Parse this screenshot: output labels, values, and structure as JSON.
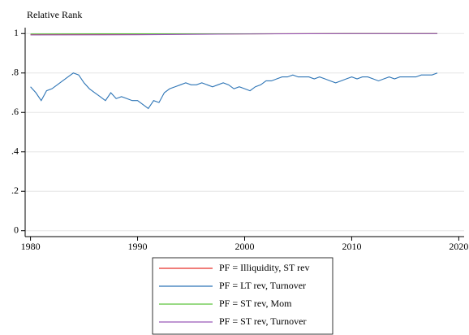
{
  "chart_data": {
    "type": "line",
    "y_axis_title": "Relative Rank",
    "xlim": [
      1979.5,
      2020.5
    ],
    "ylim": [
      -0.03,
      1.03
    ],
    "xticks": [
      1980,
      1990,
      2000,
      2010,
      2020
    ],
    "yticks": [
      0,
      {
        "value": 0.2,
        "label": ".2"
      },
      {
        "value": 0.4,
        "label": ".4"
      },
      {
        "value": 0.6,
        "label": ".6"
      },
      {
        "value": 0.8,
        "label": ".8"
      },
      1
    ],
    "grid": true,
    "legend": "bottom",
    "series": [
      {
        "name": "PF = Illiquidity, ST rev",
        "color": "#e8312b",
        "x": [
          1980,
          1990,
          2000,
          2010,
          2018
        ],
        "values": [
          0.995,
          0.996,
          0.999,
          1,
          1
        ]
      },
      {
        "name": "PF = LT rev, Turnover",
        "color": "#2e75b6",
        "x": [
          1980,
          1980.5,
          1981,
          1981.5,
          1982,
          1982.5,
          1983,
          1983.5,
          1984,
          1984.5,
          1985,
          1985.5,
          1986,
          1986.5,
          1987,
          1987.5,
          1988,
          1988.5,
          1989,
          1989.5,
          1990,
          1990.5,
          1991,
          1991.5,
          1992,
          1992.5,
          1993,
          1993.5,
          1994,
          1994.5,
          1995,
          1995.5,
          1996,
          1996.5,
          1997,
          1997.5,
          1998,
          1998.5,
          1999,
          1999.5,
          2000,
          2000.5,
          2001,
          2001.5,
          2002,
          2002.5,
          2003,
          2003.5,
          2004,
          2004.5,
          2005,
          2005.5,
          2006,
          2006.5,
          2007,
          2007.5,
          2008,
          2008.5,
          2009,
          2009.5,
          2010,
          2010.5,
          2011,
          2011.5,
          2012,
          2012.5,
          2013,
          2013.5,
          2014,
          2014.5,
          2015,
          2015.5,
          2016,
          2016.5,
          2017,
          2017.5,
          2018
        ],
        "values": [
          0.73,
          0.7,
          0.66,
          0.71,
          0.72,
          0.74,
          0.76,
          0.78,
          0.8,
          0.79,
          0.75,
          0.72,
          0.7,
          0.68,
          0.66,
          0.7,
          0.67,
          0.68,
          0.67,
          0.66,
          0.66,
          0.64,
          0.62,
          0.66,
          0.65,
          0.7,
          0.72,
          0.73,
          0.74,
          0.75,
          0.74,
          0.74,
          0.75,
          0.74,
          0.73,
          0.74,
          0.75,
          0.74,
          0.72,
          0.73,
          0.72,
          0.71,
          0.73,
          0.74,
          0.76,
          0.76,
          0.77,
          0.78,
          0.78,
          0.79,
          0.78,
          0.78,
          0.78,
          0.77,
          0.78,
          0.77,
          0.76,
          0.75,
          0.76,
          0.77,
          0.78,
          0.77,
          0.78,
          0.78,
          0.77,
          0.76,
          0.77,
          0.78,
          0.77,
          0.78,
          0.78,
          0.78,
          0.78,
          0.79,
          0.79,
          0.79,
          0.8
        ]
      },
      {
        "name": "PF = ST rev, Mom",
        "color": "#5cc43c",
        "x": [
          1980,
          1990,
          2000,
          2010,
          2018
        ],
        "values": [
          0.998,
          0.999,
          0.999,
          1,
          1
        ]
      },
      {
        "name": "PF = ST rev, Turnover",
        "color": "#9b59b6",
        "x": [
          1980,
          1990,
          2000,
          2010,
          2018
        ],
        "values": [
          0.993,
          0.994,
          0.998,
          1,
          1
        ]
      }
    ]
  }
}
